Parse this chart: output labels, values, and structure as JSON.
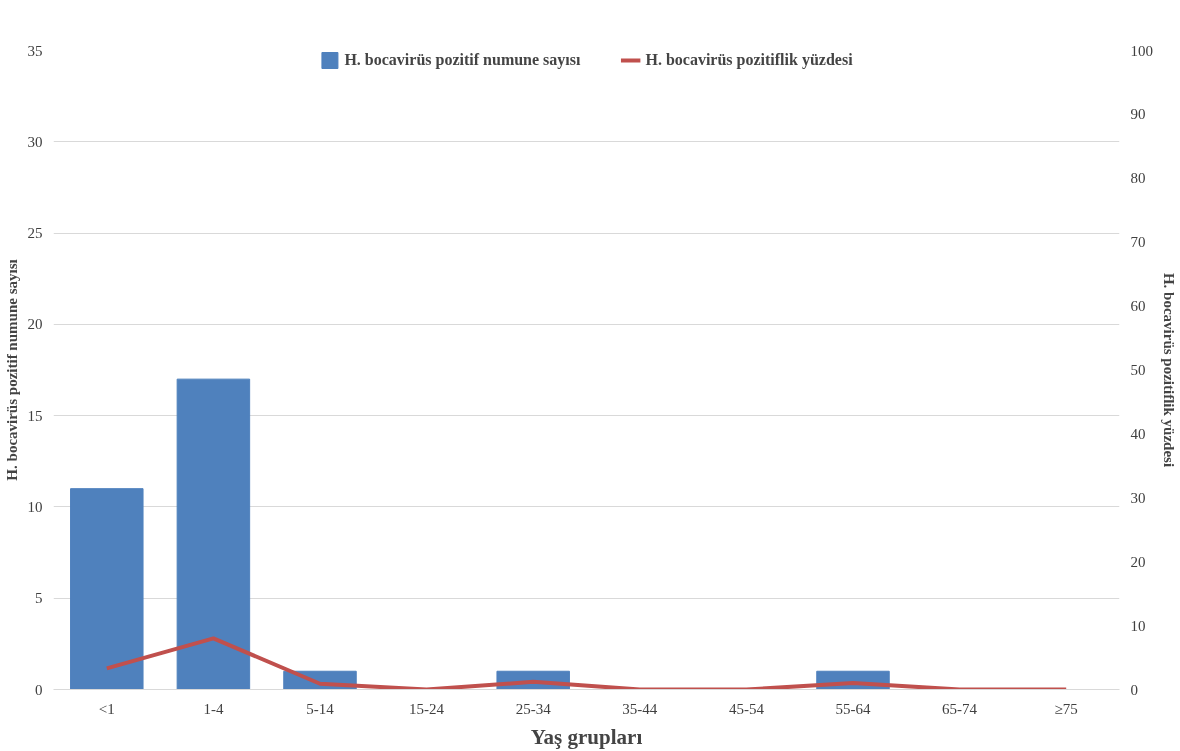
{
  "chart_data": {
    "type": "bar",
    "xlabel": "Yaş grupları",
    "ylabel": "H. bocavirüs pozitif numune sayısı",
    "y2label": "H. bocavirüs pozitiflik yüzdesi",
    "categories": [
      "<1",
      "1-4",
      "5-14",
      "15-24",
      "25-34",
      "35-44",
      "45-54",
      "55-64",
      "65-74",
      "≥75"
    ],
    "series": [
      {
        "name": "H. bocavirüs pozitif numune sayısı",
        "color": "#4f81bd",
        "values": [
          11,
          17,
          1,
          0,
          1,
          0,
          0,
          1,
          0,
          0
        ]
      },
      {
        "name": "H. bocavirüs pozitiflik yüzdesi",
        "type": "line",
        "axis": "y2",
        "color": "#c0504d",
        "values": [
          3.3,
          8,
          0.9,
          0,
          1.2,
          0,
          0,
          1,
          0,
          0
        ]
      }
    ],
    "ylim": [
      0,
      35
    ],
    "yticks": [
      0,
      5,
      10,
      15,
      20,
      25,
      30,
      35
    ],
    "y2lim": [
      0,
      100
    ],
    "y2ticks": [
      0,
      10,
      20,
      30,
      40,
      50,
      60,
      70,
      80,
      90,
      100
    ],
    "grid": "y",
    "legend": "top"
  }
}
